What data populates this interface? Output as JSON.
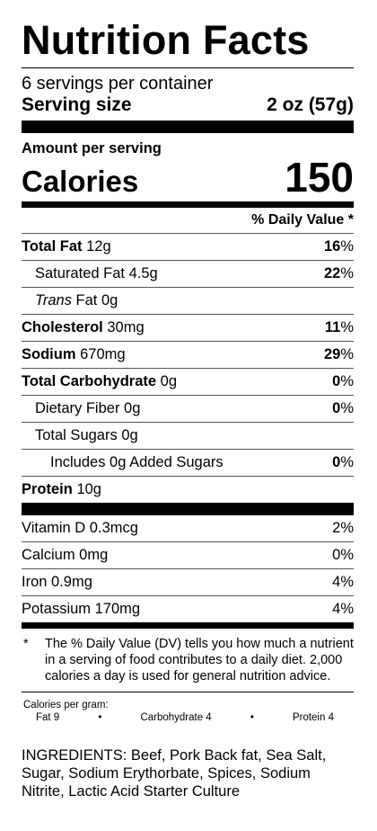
{
  "title": "Nutrition Facts",
  "servings_per_container": "6 servings per container",
  "serving_size_label": "Serving size",
  "serving_size_value": "2 oz (57g)",
  "amount_per_serving": "Amount per serving",
  "calories_label": "Calories",
  "calories_value": "150",
  "daily_value_header": "% Daily Value *",
  "nutrients": [
    {
      "name": "Total Fat",
      "amount": "12g",
      "dv": "16",
      "pct": "%"
    },
    {
      "name": "Saturated Fat",
      "amount": "4.5g",
      "dv": "22",
      "pct": "%"
    },
    {
      "name": "Trans",
      "name_suffix": "Fat",
      "amount": "0g"
    },
    {
      "name": "Cholesterol",
      "amount": "30mg",
      "dv": "11",
      "pct": "%"
    },
    {
      "name": "Sodium",
      "amount": "670mg",
      "dv": "29",
      "pct": "%"
    },
    {
      "name": "Total Carbohydrate",
      "amount": "0g",
      "dv": "0",
      "pct": "%"
    },
    {
      "name": "Dietary Fiber",
      "amount": "0g",
      "dv": "0",
      "pct": "%"
    },
    {
      "name": "Total Sugars",
      "amount": "0g"
    },
    {
      "name": "Includes 0g Added Sugars",
      "dv": "0",
      "pct": "%"
    },
    {
      "name": "Protein",
      "amount": "10g"
    }
  ],
  "vitamins": [
    {
      "name": "Vitamin D 0.3mcg",
      "dv": "2%"
    },
    {
      "name": "Calcium 0mg",
      "dv": "0%"
    },
    {
      "name": "Iron 0.9mg",
      "dv": "4%"
    },
    {
      "name": "Potassium 170mg",
      "dv": "4%"
    }
  ],
  "footnote_marker": "*",
  "footnote": "The % Daily Value (DV) tells you how much a nutrient in a serving of food contributes to a daily diet. 2,000 calories a day is used for general nutrition advice.",
  "calories_per_gram": {
    "label": "Calories per gram:",
    "fat": "Fat 9",
    "carbohydrate": "Carbohydrate 4",
    "protein": "Protein 4",
    "separator": "•"
  },
  "ingredients": "INGREDIENTS: Beef, Pork Back fat, Sea Salt, Sugar, Sodium Erythorbate, Spices, Sodium Nitrite, Lactic Acid Starter Culture"
}
